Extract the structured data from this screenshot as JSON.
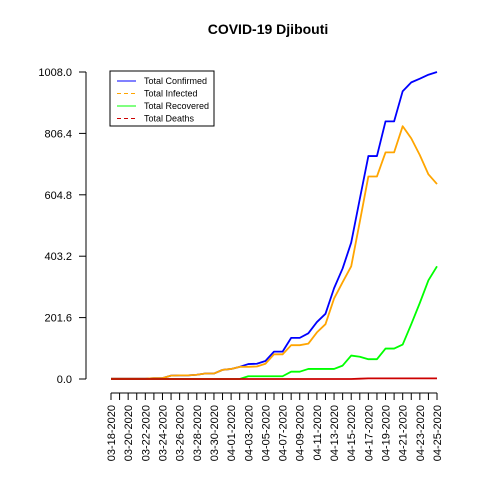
{
  "chart_data": {
    "type": "line",
    "title": "COVID-19 Djibouti",
    "xlabel": "",
    "ylabel": "",
    "ylim": [
      0,
      1008
    ],
    "yticks": [
      0,
      201.6,
      403.2,
      604.8,
      806.4,
      1008
    ],
    "ytick_labels": [
      "0.0",
      "201.6",
      "403.2",
      "604.8",
      "806.4",
      "1008.0"
    ],
    "x": [
      "03-18-2020",
      "03-19-2020",
      "03-20-2020",
      "03-21-2020",
      "03-22-2020",
      "03-23-2020",
      "03-24-2020",
      "03-25-2020",
      "03-26-2020",
      "03-27-2020",
      "03-28-2020",
      "03-29-2020",
      "03-30-2020",
      "03-31-2020",
      "04-01-2020",
      "04-02-2020",
      "04-03-2020",
      "04-04-2020",
      "04-05-2020",
      "04-06-2020",
      "04-07-2020",
      "04-08-2020",
      "04-09-2020",
      "04-10-2020",
      "04-11-2020",
      "04-12-2020",
      "04-13-2020",
      "04-14-2020",
      "04-15-2020",
      "04-16-2020",
      "04-17-2020",
      "04-18-2020",
      "04-19-2020",
      "04-20-2020",
      "04-21-2020",
      "04-22-2020",
      "04-23-2020",
      "04-24-2020",
      "04-25-2020"
    ],
    "xtick_labels": [
      "03-18-2020",
      "03-20-2020",
      "03-22-2020",
      "03-24-2020",
      "03-26-2020",
      "03-28-2020",
      "03-30-2020",
      "04-01-2020",
      "04-03-2020",
      "04-05-2020",
      "04-07-2020",
      "04-09-2020",
      "04-11-2020",
      "04-13-2020",
      "04-15-2020",
      "04-17-2020",
      "04-19-2020",
      "04-21-2020",
      "04-23-2020",
      "04-25-2020"
    ],
    "legend_position": "top-left",
    "series": [
      {
        "name": "Total Confirmed",
        "color": "#0000ff",
        "values": [
          1,
          1,
          1,
          1,
          1,
          3,
          3,
          11,
          12,
          12,
          14,
          18,
          18,
          30,
          33,
          40,
          49,
          50,
          59,
          90,
          90,
          135,
          135,
          150,
          187,
          214,
          298,
          363,
          448,
          591,
          732,
          732,
          846,
          846,
          945,
          974,
          986,
          999,
          1008
        ]
      },
      {
        "name": "Total Infected",
        "color": "#ffa500",
        "values": [
          1,
          1,
          1,
          1,
          1,
          3,
          3,
          11,
          12,
          12,
          14,
          18,
          18,
          30,
          33,
          40,
          40,
          41,
          50,
          81,
          81,
          111,
          111,
          116,
          153,
          180,
          264,
          318,
          370,
          516,
          665,
          665,
          744,
          744,
          830,
          790,
          735,
          672,
          640
        ]
      },
      {
        "name": "Total Recovered",
        "color": "#00ff00",
        "values": [
          0,
          0,
          0,
          0,
          0,
          0,
          0,
          0,
          0,
          0,
          0,
          0,
          0,
          0,
          0,
          0,
          9,
          9,
          9,
          9,
          9,
          24,
          24,
          33,
          33,
          33,
          33,
          44,
          77,
          73,
          65,
          65,
          100,
          100,
          113,
          180,
          250,
          324,
          370
        ]
      },
      {
        "name": "Total Deaths",
        "color": "#cc0000",
        "values": [
          0,
          0,
          0,
          0,
          0,
          0,
          0,
          0,
          0,
          0,
          0,
          0,
          0,
          0,
          0,
          0,
          0,
          0,
          0,
          0,
          0,
          0,
          0,
          0,
          0,
          0,
          0,
          0,
          0,
          1,
          2,
          2,
          2,
          2,
          2,
          2,
          2,
          2,
          2
        ]
      }
    ]
  }
}
